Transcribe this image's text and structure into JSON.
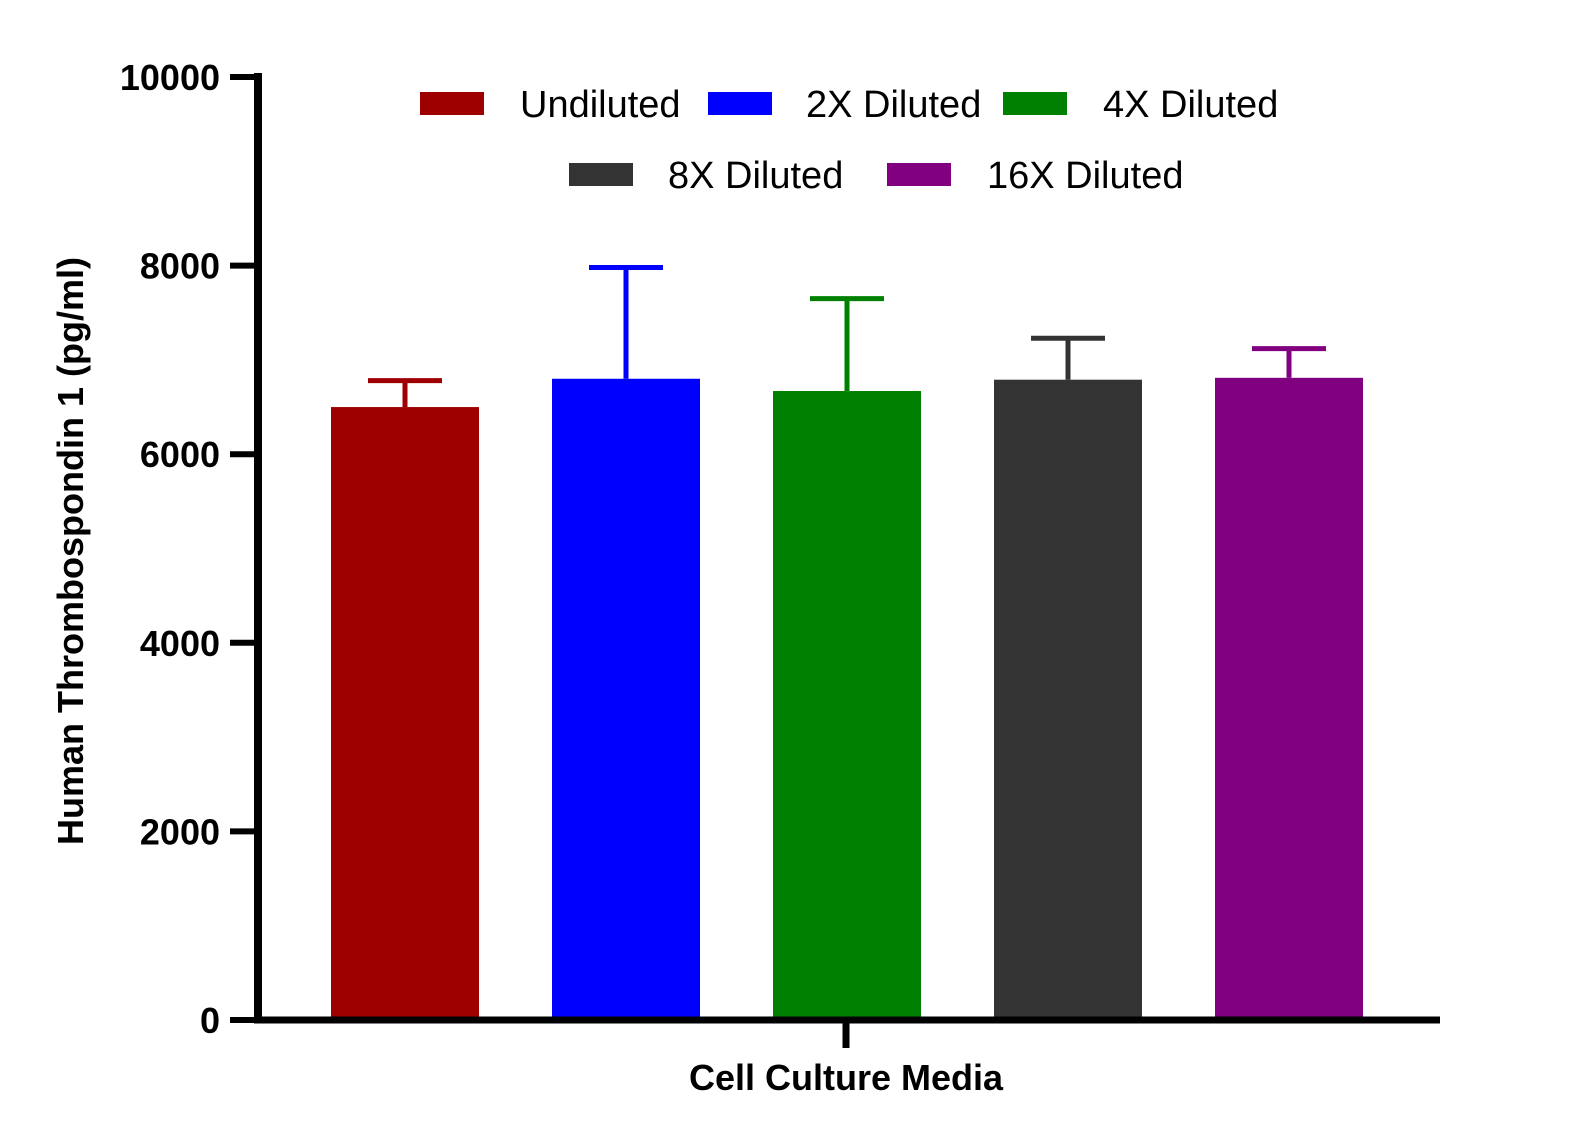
{
  "chart_data": {
    "type": "bar",
    "title": "",
    "xlabel": "Cell Culture Media",
    "ylabel": "Human Thrombospondin 1 (pg/ml)",
    "ylim": [
      0,
      10000
    ],
    "yticks": [
      0,
      2000,
      4000,
      6000,
      8000,
      10000
    ],
    "ytick_labels": [
      "0",
      "2000",
      "4000",
      "6000",
      "8000",
      "10000"
    ],
    "categories": [
      "Cell Culture Media"
    ],
    "series": [
      {
        "name": "Undiluted",
        "values": [
          6500
        ],
        "error": [
          280
        ],
        "color": "#9E0000"
      },
      {
        "name": "2X Diluted",
        "values": [
          6800
        ],
        "error": [
          1180
        ],
        "color": "#0000FF"
      },
      {
        "name": "4X Diluted",
        "values": [
          6670
        ],
        "error": [
          980
        ],
        "color": "#008000"
      },
      {
        "name": "8X Diluted",
        "values": [
          6790
        ],
        "error": [
          440
        ],
        "color": "#333333"
      },
      {
        "name": "16X Diluted",
        "values": [
          6810
        ],
        "error": [
          310
        ],
        "color": "#800080"
      }
    ],
    "grid": false,
    "legend_position": "top"
  }
}
